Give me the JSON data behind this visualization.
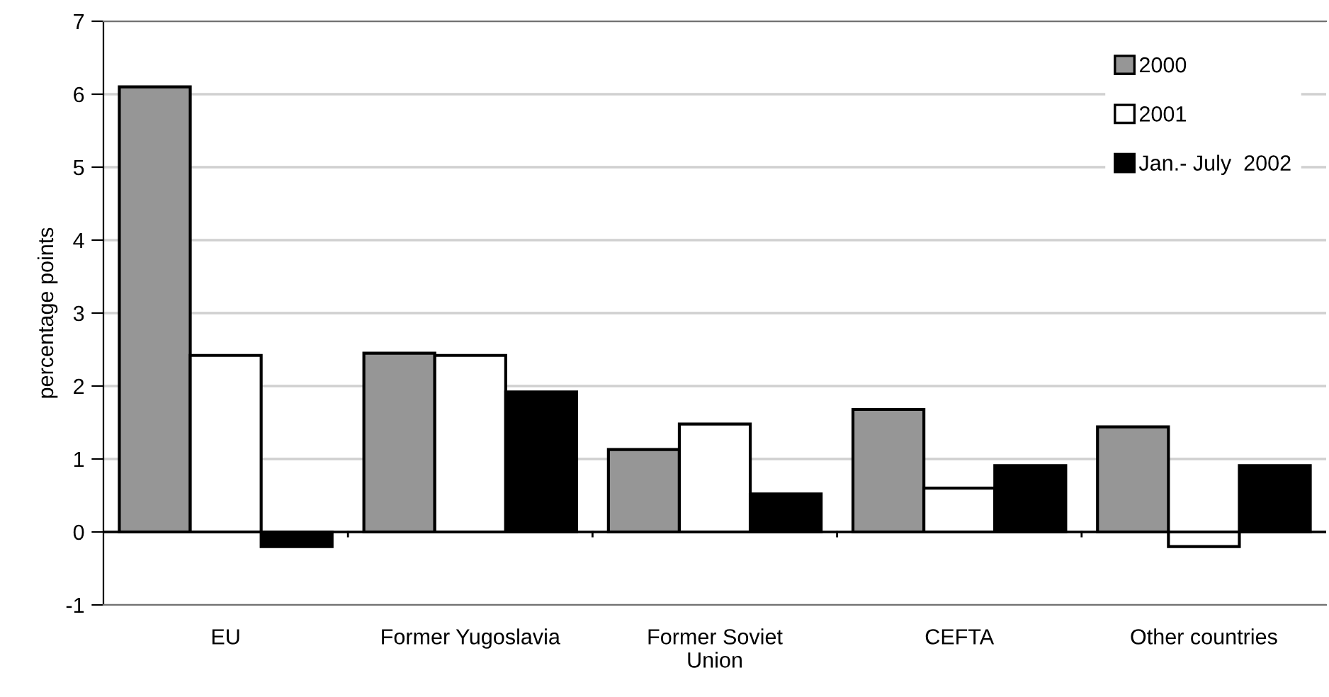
{
  "chart_data": {
    "type": "bar",
    "xlabel": null,
    "ylabel": "percentage points",
    "categories": [
      "EU",
      "Former Yugoslavia",
      "Former Soviet\nUnion",
      "CEFTA",
      "Other countries"
    ],
    "series": [
      {
        "name": "2000",
        "color": "#969696",
        "values": [
          6.1,
          2.45,
          1.13,
          1.68,
          1.44
        ]
      },
      {
        "name": "2001",
        "color": "#ffffff",
        "values": [
          2.42,
          2.42,
          1.48,
          0.6,
          -0.2
        ]
      },
      {
        "name": "Jan.- July  2002",
        "color": "#000000",
        "values": [
          -0.2,
          1.92,
          0.52,
          0.91,
          0.91
        ]
      }
    ],
    "ylim": [
      -1,
      7
    ],
    "yticks": [
      -1,
      0,
      1,
      2,
      3,
      4,
      5,
      6,
      7
    ],
    "grid": "y",
    "legend": "top right"
  }
}
